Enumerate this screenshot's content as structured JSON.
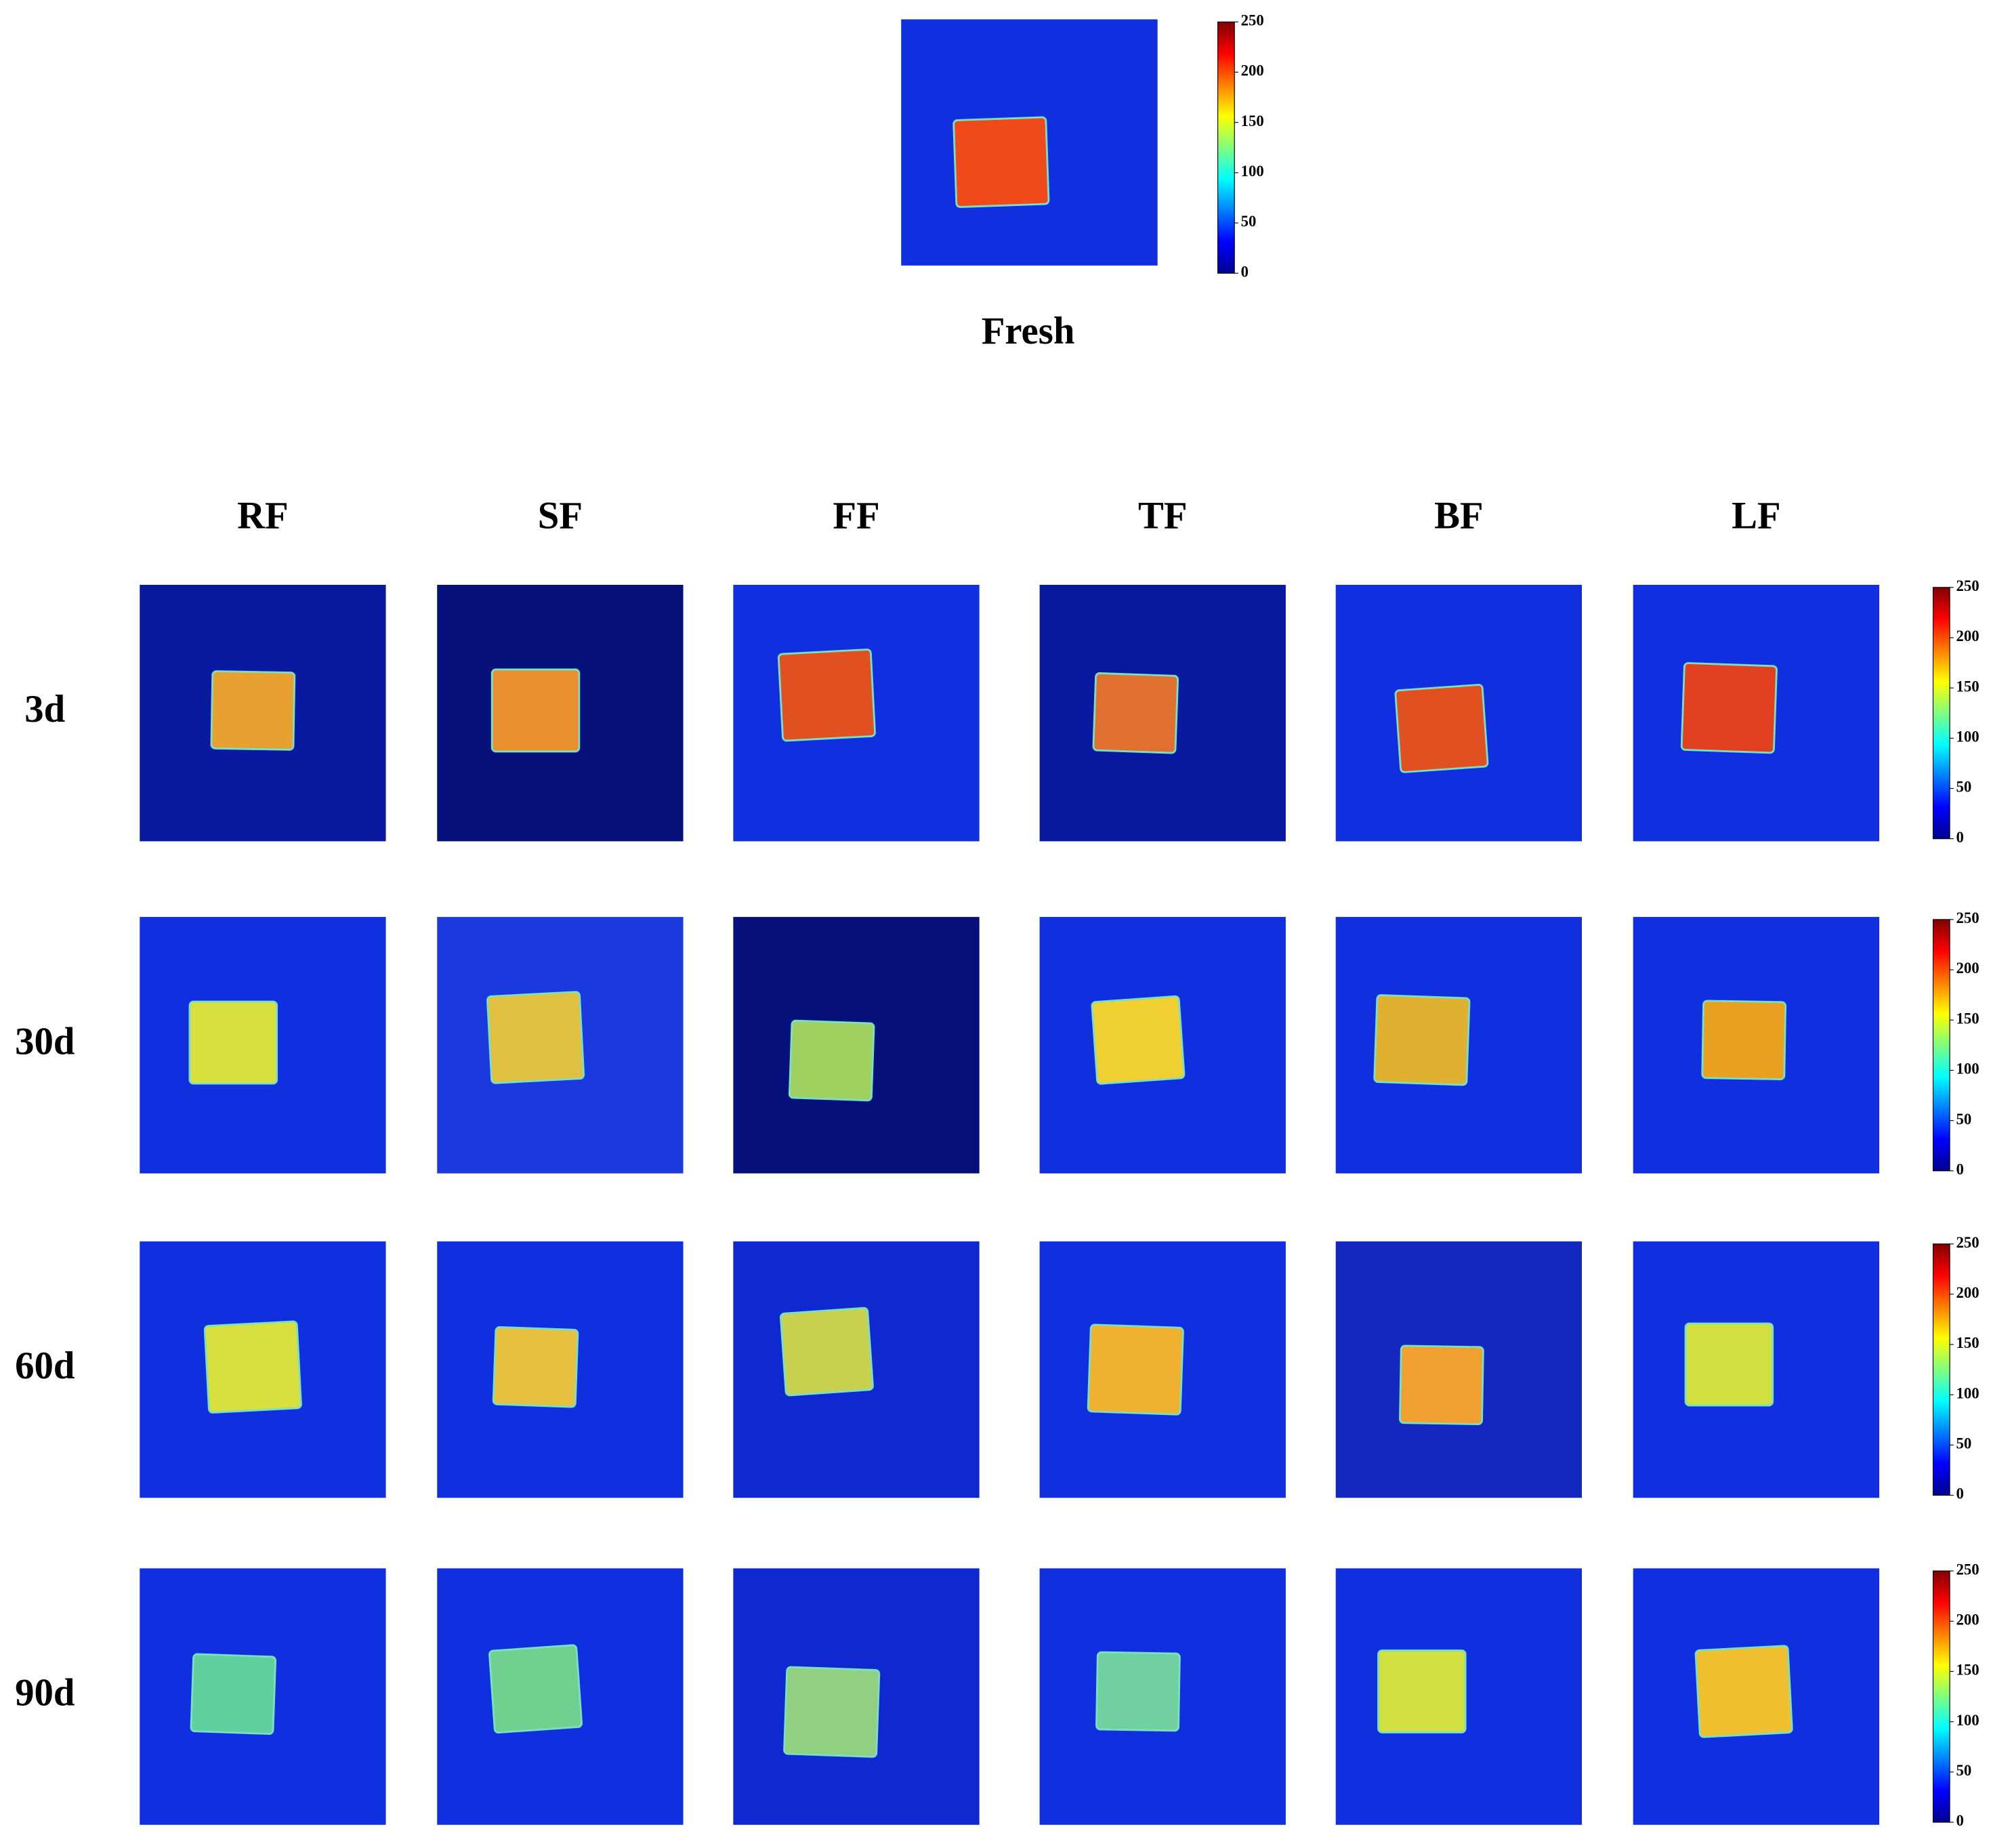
{
  "fresh": {
    "label": "Fresh",
    "color": "#f04a1a",
    "background": "#1030e0"
  },
  "columns": [
    "RF",
    "SF",
    "FF",
    "TF",
    "BF",
    "LF"
  ],
  "rows": [
    {
      "label": "3d",
      "samples": [
        {
          "color": "#e8a030",
          "background": "#0a1aa0"
        },
        {
          "color": "#e89030",
          "background": "#06107a"
        },
        {
          "color": "#e05020",
          "background": "#1030e0"
        },
        {
          "color": "#e07030",
          "background": "#0a1aa0"
        },
        {
          "color": "#e05020",
          "background": "#1030e0"
        },
        {
          "color": "#e04020",
          "background": "#1030e0"
        }
      ]
    },
    {
      "label": "30d",
      "samples": [
        {
          "color": "#d8e040",
          "background": "#1030e0"
        },
        {
          "color": "#e0c040",
          "background": "#1a3ae0"
        },
        {
          "color": "#a0d060",
          "background": "#06107a"
        },
        {
          "color": "#f0d030",
          "background": "#1030e0"
        },
        {
          "color": "#e0b030",
          "background": "#1030e0"
        },
        {
          "color": "#e8a020",
          "background": "#1030e0"
        }
      ]
    },
    {
      "label": "60d",
      "samples": [
        {
          "color": "#d8e040",
          "background": "#1030e0"
        },
        {
          "color": "#e8c040",
          "background": "#1030e0"
        },
        {
          "color": "#c8d050",
          "background": "#1028d0"
        },
        {
          "color": "#f0b030",
          "background": "#1030e0"
        },
        {
          "color": "#f0a030",
          "background": "#1428c0"
        },
        {
          "color": "#d0e040",
          "background": "#1030e0"
        }
      ]
    },
    {
      "label": "90d",
      "samples": [
        {
          "color": "#60d0a0",
          "background": "#1030e0"
        },
        {
          "color": "#70d090",
          "background": "#1030e0"
        },
        {
          "color": "#90d080",
          "background": "#1028d0"
        },
        {
          "color": "#70d0a0",
          "background": "#1030e0"
        },
        {
          "color": "#d0e040",
          "background": "#1030e0"
        },
        {
          "color": "#f0c030",
          "background": "#1030e0"
        }
      ]
    }
  ],
  "colorbar_ticks": [
    0,
    50,
    100,
    150,
    200,
    250
  ]
}
